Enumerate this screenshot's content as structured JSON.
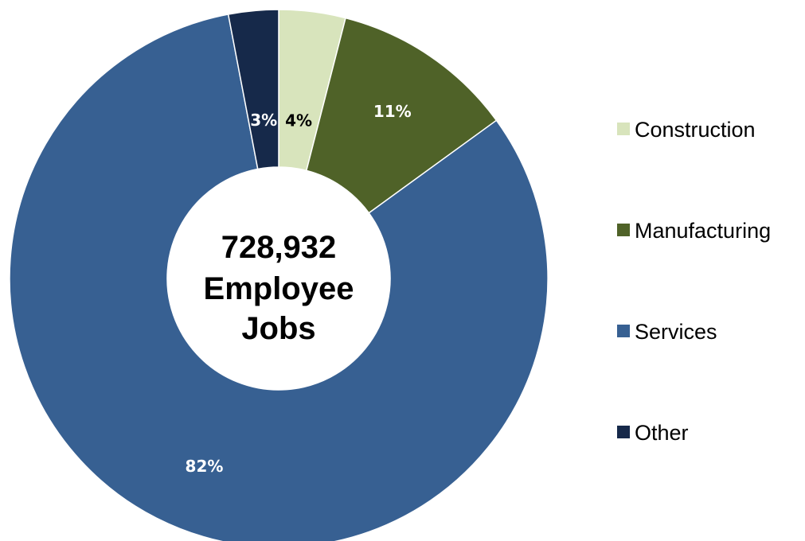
{
  "chart_data": {
    "type": "pie",
    "donut": true,
    "categories": [
      "Construction",
      "Manufacturing",
      "Services",
      "Other"
    ],
    "values": [
      4,
      11,
      82,
      3
    ],
    "data_labels": [
      "4%",
      "11%",
      "82%",
      "3%"
    ],
    "colors": [
      "#d8e4bc",
      "#4f6228",
      "#376092",
      "#16294a"
    ],
    "label_colors": [
      "#000000",
      "#ffffff",
      "#ffffff",
      "#ffffff"
    ],
    "center_label": [
      "728,932",
      "Employee",
      "Jobs"
    ],
    "legend_position": "right"
  }
}
